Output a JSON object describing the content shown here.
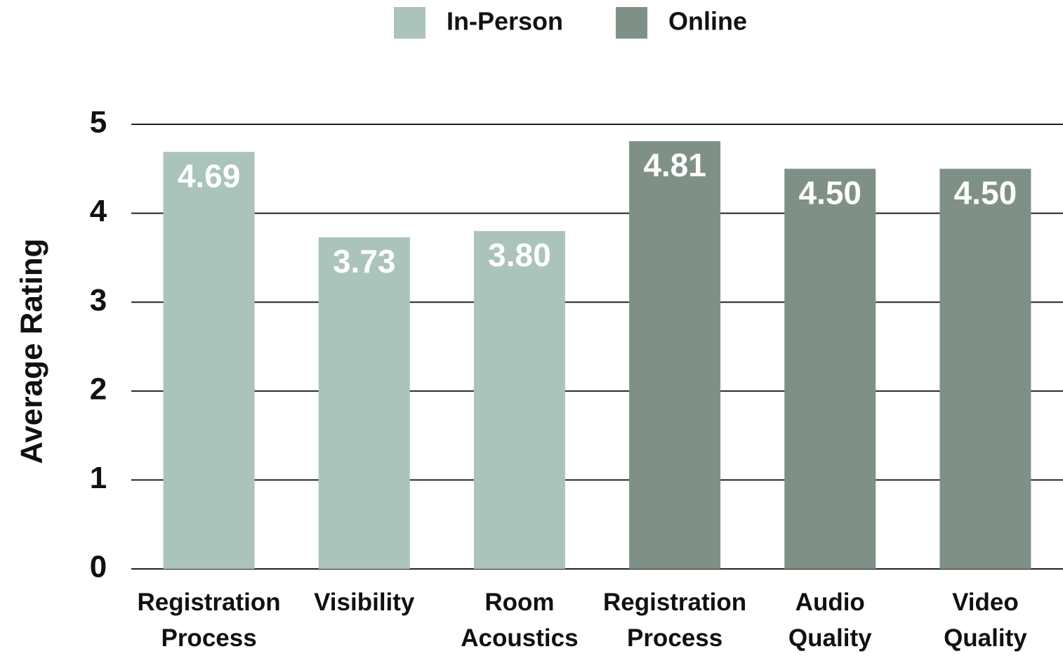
{
  "chart_data": {
    "type": "bar",
    "y_label": "Average Rating",
    "categories": [
      "Registration Process",
      "Visibility",
      "Room Acoustics",
      "Registration Process",
      "Audio Quality",
      "Video Quality"
    ],
    "series": [
      {
        "name": "In-Person",
        "color": "#abc4bb",
        "values": [
          4.69,
          3.73,
          3.8,
          null,
          null,
          null
        ],
        "value_labels": [
          "4.69",
          "3.73",
          "3.80",
          null,
          null,
          null
        ]
      },
      {
        "name": "Online",
        "color": "#7f9187",
        "values": [
          null,
          null,
          null,
          4.81,
          4.5,
          4.5
        ],
        "value_labels": [
          null,
          null,
          null,
          "4.81",
          "4.50",
          "4.50"
        ]
      }
    ],
    "ylim": [
      0,
      5
    ],
    "yticks": [
      0,
      1,
      2,
      3,
      4,
      5
    ],
    "grid": true,
    "legend": "top"
  }
}
